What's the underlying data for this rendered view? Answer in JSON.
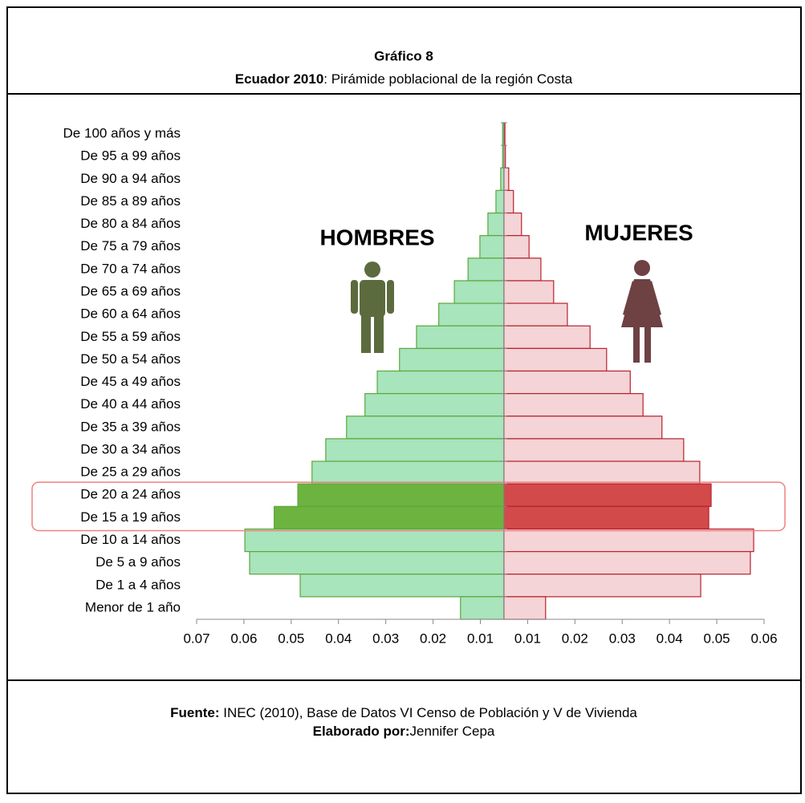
{
  "chart_data": {
    "type": "pyramid",
    "title": "Gráfico 8",
    "subtitle_bold": "Ecuador 2010",
    "subtitle": ": Pirámide poblacional de la región Costa",
    "categories": [
      "De 100 años y más",
      "De 95 a 99 años",
      "De 90 a 94 años",
      "De 85 a 89 años",
      "De 80 a 84 años",
      "De 75 a 79 años",
      "De 70 a 74 años",
      "De 65 a 69 años",
      "De 60 a 64 años",
      "De 55 a 59 años",
      "De 50 a 54 años",
      "De 45 a 49 años",
      "De 40 a 44 años",
      "De 35 a 39 años",
      "De 30 a 34 años",
      "De 25 a 29 años",
      "De 20 a 24 años",
      "De 15 a 19 años",
      "De 10 a 14 años",
      "De 5 a 9 años",
      "De 1 a 4 años",
      "Menor de 1 año"
    ],
    "series": [
      {
        "name": "HOMBRES",
        "side": "left",
        "color": "#a8e4bc",
        "highlight_color": "#6db33f",
        "edge": "#5aa83a",
        "values": [
          0.0003,
          0.0003,
          0.0007,
          0.0017,
          0.0034,
          0.0051,
          0.0076,
          0.0105,
          0.0138,
          0.0185,
          0.0221,
          0.0268,
          0.0294,
          0.0333,
          0.0377,
          0.0406,
          0.0436,
          0.0486,
          0.0548,
          0.0538,
          0.0431,
          0.0092
        ]
      },
      {
        "name": "MUJERES",
        "side": "right",
        "color": "#f4d4d6",
        "highlight_color": "#d24a4a",
        "edge": "#b8202e",
        "values": [
          0.0002,
          0.0003,
          0.001,
          0.002,
          0.0037,
          0.0053,
          0.0078,
          0.0105,
          0.0134,
          0.0182,
          0.0217,
          0.0267,
          0.0294,
          0.0334,
          0.038,
          0.0414,
          0.0438,
          0.0433,
          0.0528,
          0.0521,
          0.0416,
          0.0088
        ]
      }
    ],
    "highlight": [
      16,
      17
    ],
    "xlim": [
      -0.065,
      0.055
    ],
    "xticks": [
      {
        "value": -0.065,
        "label": "0.07"
      },
      {
        "value": -0.055,
        "label": "0.06"
      },
      {
        "value": -0.045,
        "label": "0.05"
      },
      {
        "value": -0.035,
        "label": "0.04"
      },
      {
        "value": -0.025,
        "label": "0.03"
      },
      {
        "value": -0.015,
        "label": "0.02"
      },
      {
        "value": -0.005,
        "label": "0.01"
      },
      {
        "value": 0.005,
        "label": "0.01"
      },
      {
        "value": 0.015,
        "label": "0.02"
      },
      {
        "value": 0.025,
        "label": "0.03"
      },
      {
        "value": 0.035,
        "label": "0.04"
      },
      {
        "value": 0.045,
        "label": "0.05"
      },
      {
        "value": 0.055,
        "label": "0.06"
      }
    ],
    "source_label": "Fuente:",
    "source": " INEC (2010), Base de Datos VI Censo de Población y V de Vivienda",
    "author_label": "Elaborado por:",
    "author": "Jennifer Cepa"
  }
}
